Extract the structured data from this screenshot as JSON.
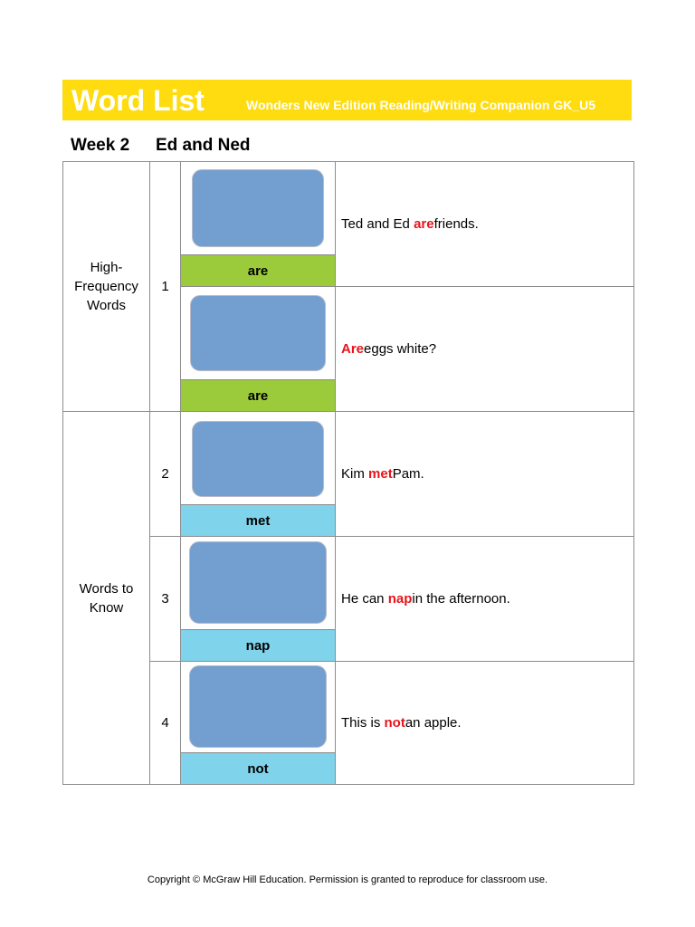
{
  "header": {
    "title": "Word List",
    "subtitle": "Wonders New Edition Reading/Writing Companion GK_U5"
  },
  "week": {
    "label": "Week 2",
    "title": "Ed and Ned"
  },
  "categories": {
    "hfw": "High-Frequency Words",
    "wtk": "Words to Know"
  },
  "rows": [
    {
      "number": "1",
      "word": "are",
      "sentence_before": "Ted and Ed ",
      "sentence_word": "are",
      "sentence_after": " friends."
    },
    {
      "number": "",
      "word": "are",
      "sentence_before": "",
      "sentence_word": "Are",
      "sentence_after": " eggs white?"
    },
    {
      "number": "2",
      "word": "met",
      "sentence_before": "Kim ",
      "sentence_word": "met",
      "sentence_after": " Pam."
    },
    {
      "number": "3",
      "word": "nap",
      "sentence_before": "He can ",
      "sentence_word": "nap",
      "sentence_after": " in the afternoon."
    },
    {
      "number": "4",
      "word": "not",
      "sentence_before": "This is ",
      "sentence_word": "not",
      "sentence_after": " an apple."
    }
  ],
  "colors": {
    "banner": "#fedc0f",
    "hfw_label": "#9bcb3b",
    "wtk_label": "#7fd3eb",
    "picture": "#729fcf",
    "highlight": "#e8141b"
  },
  "footer": "Copyright © McGraw Hill Education. Permission is granted to reproduce for classroom use."
}
